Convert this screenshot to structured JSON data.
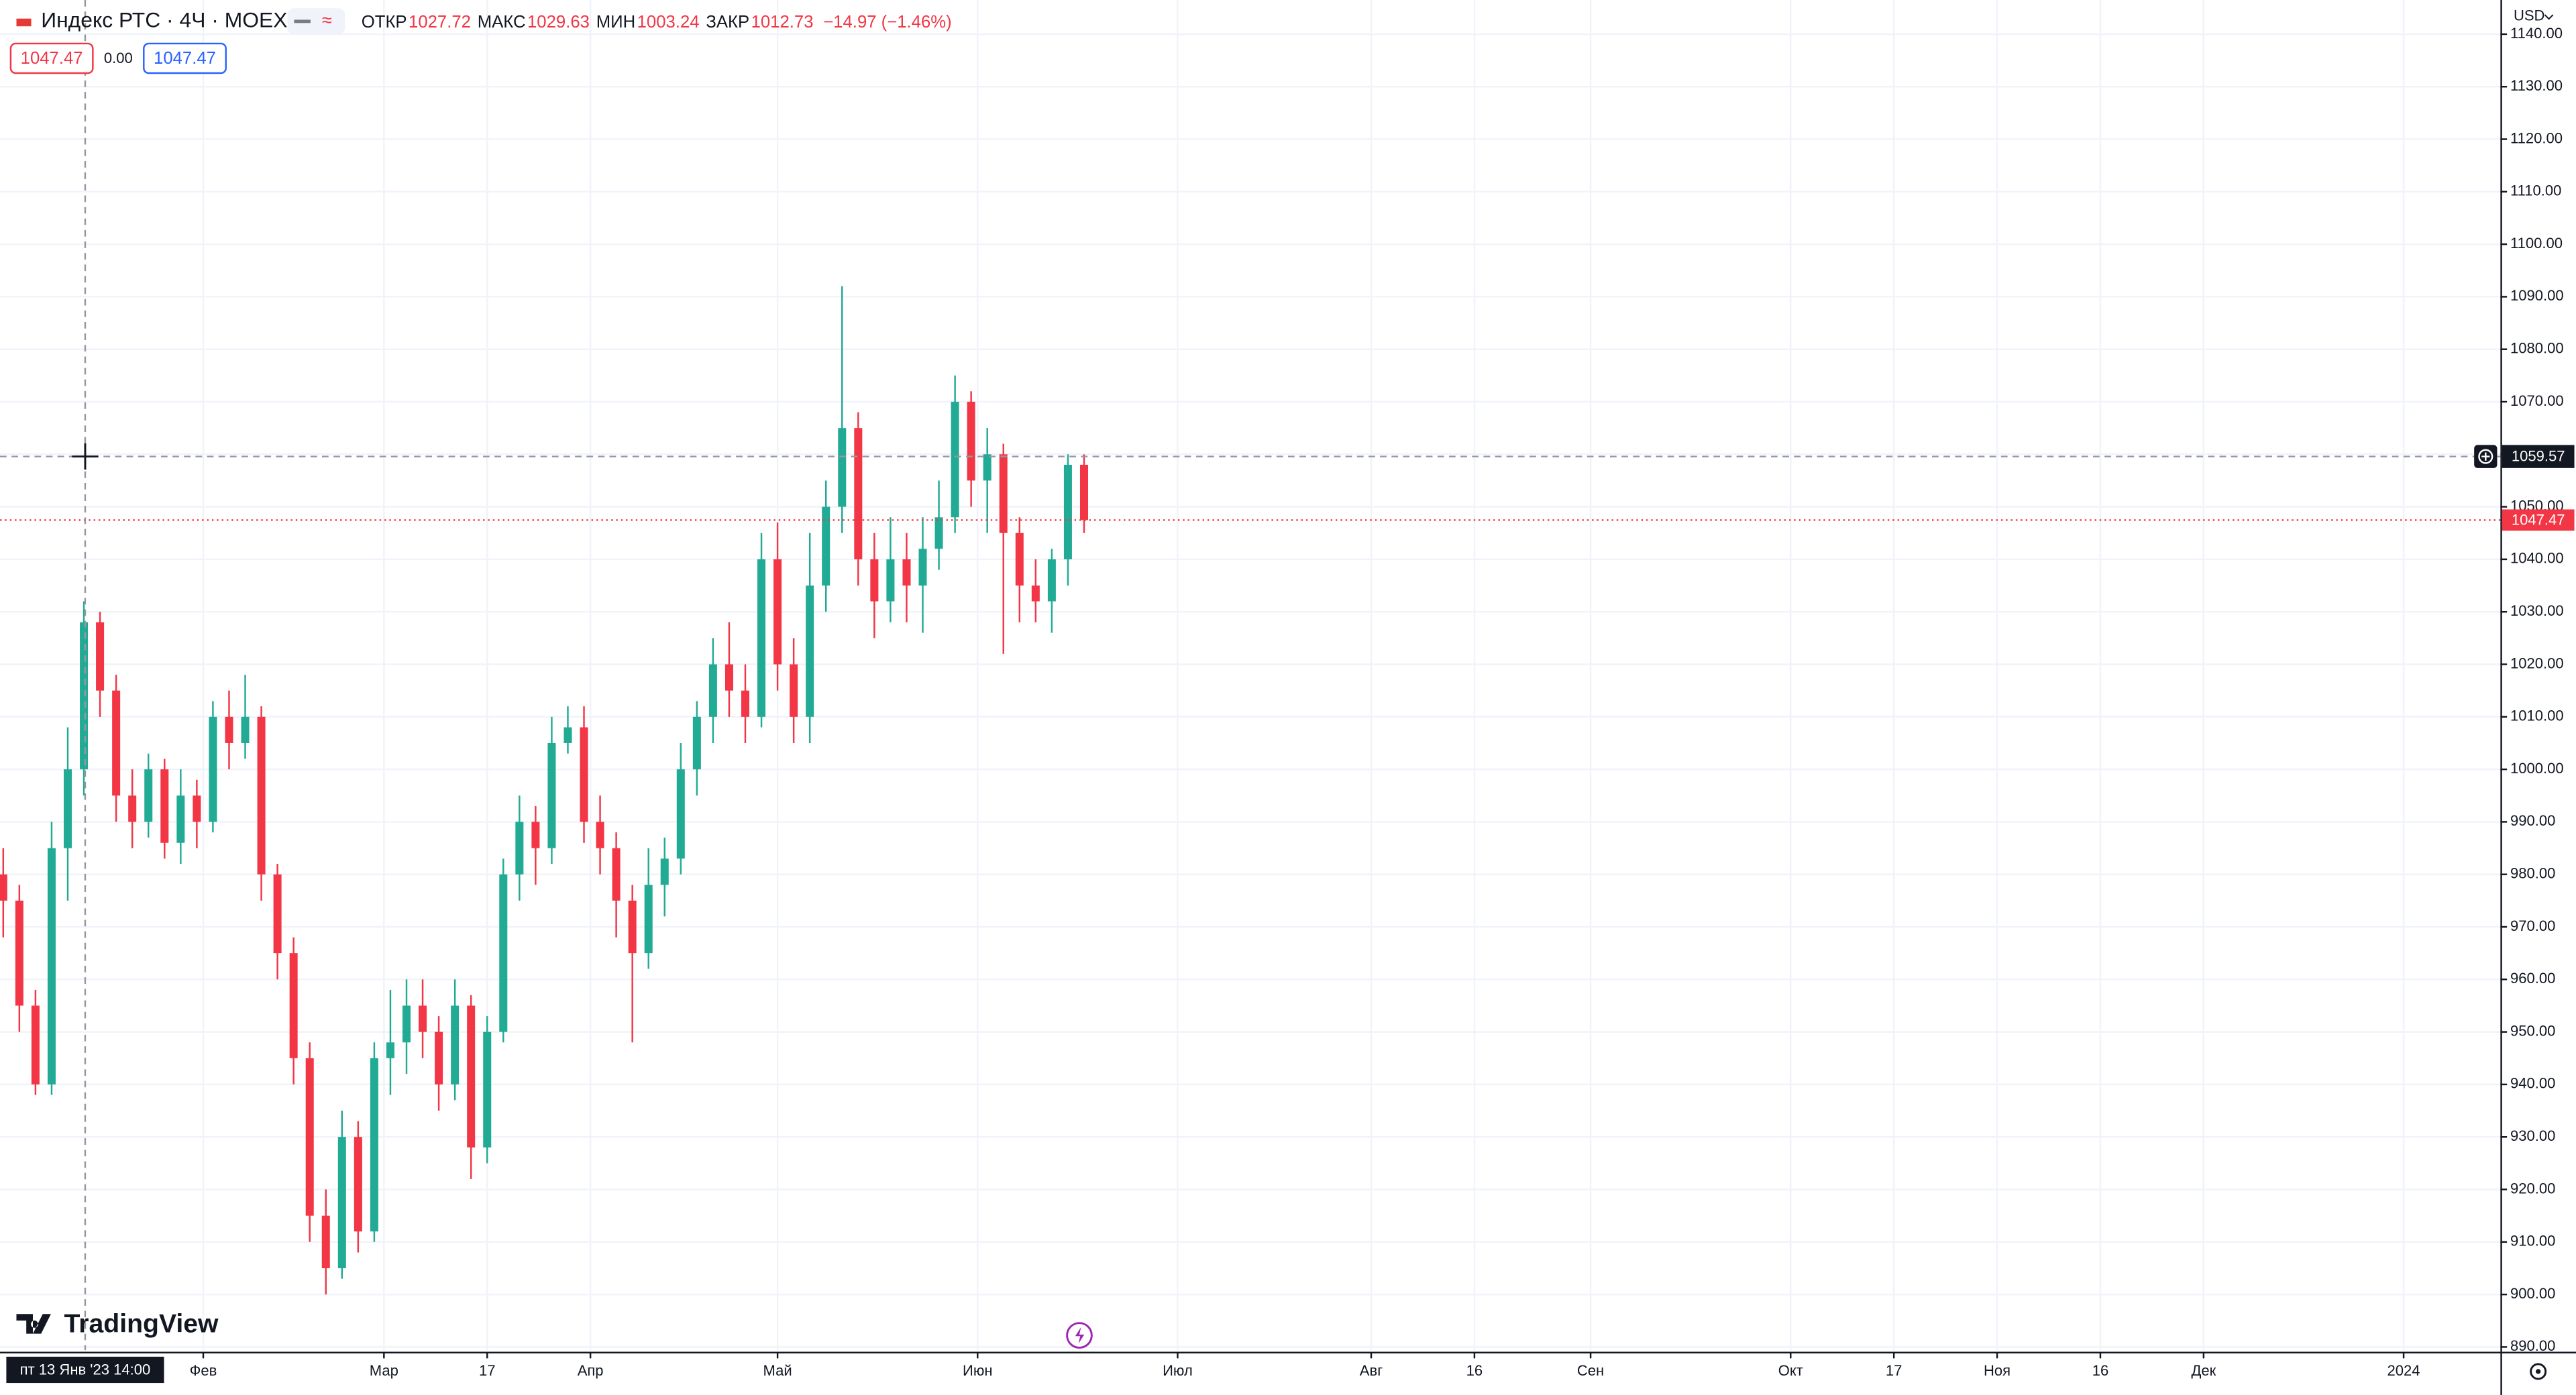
{
  "chart_data": {
    "type": "candlestick",
    "symbol": "Индекс РТС · 4Ч · MOEX",
    "legend": [
      {
        "label": "ОТКР",
        "value": 1027.72
      },
      {
        "label": "МАКС",
        "value": 1029.63
      },
      {
        "label": "МИН",
        "value": 1003.24
      },
      {
        "label": "ЗАКР",
        "value": 1012.73
      }
    ],
    "change": "−14.97 (−1.46%)",
    "sell_price": 1047.47,
    "spread": "0.00",
    "buy_price": 1047.47,
    "currency": "USD",
    "logo": "TradingView",
    "up_color": "#22ab94",
    "down_color": "#f23645",
    "x": [
      0,
      2.5,
      5,
      7.5,
      10,
      12.5,
      15,
      17.5,
      20,
      22.5,
      25,
      27.5,
      30,
      32.5,
      35,
      37.5,
      40,
      42.5,
      45,
      47.5,
      50,
      52.5,
      55,
      57.5,
      60,
      62.5,
      65,
      67.5,
      70,
      72.5,
      75,
      77.5,
      80,
      82.5,
      85,
      87.5,
      90,
      92.5,
      95,
      97.5,
      100,
      102.5,
      105,
      107.5,
      110,
      112.5,
      115,
      117.5,
      120,
      122.5,
      125,
      127.5,
      130,
      132.5,
      135,
      137.5,
      140,
      142.5,
      145,
      147.5,
      150,
      152.5,
      155,
      157.5,
      160,
      162.5,
      165,
      167.5
    ],
    "open": [
      980,
      975,
      955,
      940,
      985,
      1000,
      1028,
      1015,
      995,
      990,
      1000,
      986,
      995,
      990,
      1010,
      1005,
      1010,
      980,
      965,
      945,
      915,
      905,
      930,
      912,
      945,
      948,
      955,
      950,
      940,
      955,
      928,
      950,
      980,
      990,
      985,
      1005,
      1008,
      990,
      985,
      975,
      965,
      978,
      983,
      1000,
      1010,
      1020,
      1015,
      1010,
      1040,
      1020,
      1010,
      1035,
      1050,
      1065,
      1040,
      1032,
      1040,
      1035,
      1042,
      1048,
      1070,
      1055,
      1060,
      1045,
      1035,
      1032,
      1040,
      1058
    ],
    "high": [
      985,
      978,
      958,
      990,
      1008,
      1032,
      1030,
      1018,
      1000,
      1003,
      1002,
      1000,
      998,
      1013,
      1015,
      1018,
      1012,
      982,
      968,
      948,
      920,
      935,
      933,
      948,
      958,
      960,
      960,
      953,
      960,
      957,
      953,
      983,
      995,
      993,
      1010,
      1012,
      1012,
      995,
      988,
      978,
      985,
      987,
      1005,
      1013,
      1025,
      1028,
      1020,
      1045,
      1047,
      1025,
      1045,
      1055,
      1092,
      1068,
      1045,
      1048,
      1045,
      1048,
      1055,
      1075,
      1072,
      1065,
      1062,
      1048,
      1040,
      1042,
      1060,
      1060
    ],
    "low": [
      968,
      950,
      938,
      938,
      975,
      995,
      1010,
      990,
      985,
      987,
      983,
      982,
      985,
      988,
      1000,
      1002,
      975,
      960,
      940,
      910,
      900,
      903,
      908,
      910,
      938,
      942,
      945,
      935,
      937,
      922,
      925,
      948,
      975,
      978,
      982,
      1003,
      986,
      980,
      968,
      948,
      962,
      972,
      980,
      995,
      1005,
      1010,
      1005,
      1008,
      1015,
      1005,
      1005,
      1030,
      1045,
      1035,
      1025,
      1028,
      1028,
      1026,
      1038,
      1045,
      1050,
      1045,
      1022,
      1028,
      1028,
      1026,
      1035,
      1045
    ],
    "close": [
      975,
      955,
      940,
      985,
      1000,
      1028,
      1015,
      995,
      990,
      1000,
      986,
      995,
      990,
      1010,
      1005,
      1010,
      980,
      965,
      945,
      915,
      905,
      930,
      912,
      945,
      948,
      955,
      950,
      940,
      955,
      928,
      950,
      980,
      990,
      985,
      1005,
      1008,
      990,
      985,
      975,
      965,
      978,
      983,
      1000,
      1010,
      1020,
      1015,
      1010,
      1040,
      1020,
      1010,
      1035,
      1050,
      1065,
      1040,
      1032,
      1040,
      1035,
      1042,
      1048,
      1070,
      1055,
      1060,
      1045,
      1035,
      1032,
      1040,
      1058,
      1047.47
    ],
    "last_price": 1047.47,
    "crosshair_price": 1059.57,
    "crosshair_x": 12.7,
    "crosshair_date": "пт 13 Янв '23 14:00",
    "xlim": [
      -0.5,
      387
    ],
    "xticks": [
      {
        "value": 31,
        "label": "Фев"
      },
      {
        "value": 59,
        "label": "Мар"
      },
      {
        "value": 75,
        "label": "17"
      },
      {
        "value": 91,
        "label": "Апр"
      },
      {
        "value": 120,
        "label": "Май"
      },
      {
        "value": 151,
        "label": "Июн"
      },
      {
        "value": 182,
        "label": "Июл"
      },
      {
        "value": 212,
        "label": "Авг"
      },
      {
        "value": 228,
        "label": "16"
      },
      {
        "value": 246,
        "label": "Сен"
      },
      {
        "value": 277,
        "label": "Окт"
      },
      {
        "value": 293,
        "label": "17"
      },
      {
        "value": 309,
        "label": "Ноя"
      },
      {
        "value": 325,
        "label": "16"
      },
      {
        "value": 341,
        "label": "Дек"
      },
      {
        "value": 372,
        "label": "2024"
      }
    ],
    "ylim": [
      889.4,
      1146.5
    ],
    "yticks": [
      {
        "value": 890,
        "label": "890.00"
      },
      {
        "value": 900,
        "label": "900.00"
      },
      {
        "value": 910,
        "label": "910.00"
      },
      {
        "value": 920,
        "label": "920.00"
      },
      {
        "value": 930,
        "label": "930.00"
      },
      {
        "value": 940,
        "label": "940.00"
      },
      {
        "value": 950,
        "label": "950.00"
      },
      {
        "value": 960,
        "label": "960.00"
      },
      {
        "value": 970,
        "label": "970.00"
      },
      {
        "value": 980,
        "label": "980.00"
      },
      {
        "value": 990,
        "label": "990.00"
      },
      {
        "value": 1000,
        "label": "1000.00"
      },
      {
        "value": 1010,
        "label": "1010.00"
      },
      {
        "value": 1020,
        "label": "1020.00"
      },
      {
        "value": 1030,
        "label": "1030.00"
      },
      {
        "value": 1040,
        "label": "1040.00"
      },
      {
        "value": 1050,
        "label": "1050.00"
      },
      {
        "value": 1060,
        "label": "1060.00"
      },
      {
        "value": 1070,
        "label": "1070.00"
      },
      {
        "value": 1080,
        "label": "1080.00"
      },
      {
        "value": 1090,
        "label": "1090.00"
      },
      {
        "value": 1100,
        "label": "1100.00"
      },
      {
        "value": 1110,
        "label": "1110.00"
      },
      {
        "value": 1120,
        "label": "1120.00"
      },
      {
        "value": 1130,
        "label": "1130.00"
      },
      {
        "value": 1140,
        "label": "1140.00"
      }
    ],
    "grid": true
  }
}
